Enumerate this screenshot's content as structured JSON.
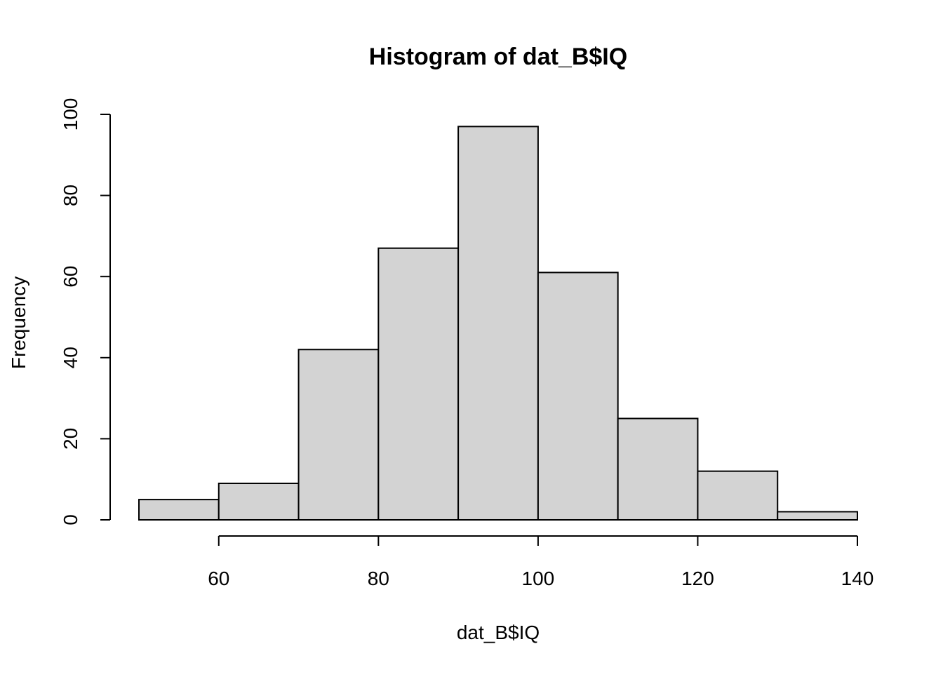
{
  "chart_data": {
    "type": "bar",
    "title": "Histogram of dat_B$IQ",
    "xlabel": "dat_B$IQ",
    "ylabel": "Frequency",
    "bins": [
      {
        "from": 50,
        "to": 60,
        "value": 5
      },
      {
        "from": 60,
        "to": 70,
        "value": 9
      },
      {
        "from": 70,
        "to": 80,
        "value": 42
      },
      {
        "from": 80,
        "to": 90,
        "value": 67
      },
      {
        "from": 90,
        "to": 100,
        "value": 97
      },
      {
        "from": 100,
        "to": 110,
        "value": 61
      },
      {
        "from": 110,
        "to": 120,
        "value": 25
      },
      {
        "from": 120,
        "to": 130,
        "value": 12
      },
      {
        "from": 130,
        "to": 140,
        "value": 2
      }
    ],
    "xlim": [
      50,
      140
    ],
    "ylim": [
      0,
      100
    ],
    "x_ticks": [
      60,
      80,
      100,
      120,
      140
    ],
    "y_ticks": [
      0,
      20,
      40,
      60,
      80,
      100
    ],
    "bar_color": "#d3d3d3",
    "grid": false,
    "legend": "none"
  }
}
